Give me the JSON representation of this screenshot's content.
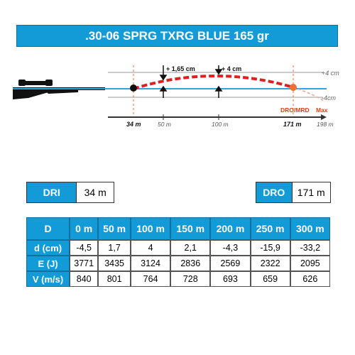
{
  "title": ".30-06 SPRG TXRG BLUE 165 gr",
  "trajectory": {
    "annotations": {
      "rise_165": "+ 1,65 cm",
      "rise_4": "+ 4 cm",
      "band_top": "+4 cm",
      "band_bottom": "-4cm",
      "dro_mrd": "DRO/MRD",
      "max": "Max"
    },
    "distance_labels": {
      "d34": "34 m",
      "d50": "50 m",
      "d100": "100 m",
      "d171": "171 m",
      "d198": "198 m"
    },
    "colors": {
      "trajectory": "#e02020",
      "zero_line": "#2aa6e0",
      "band": "#999999",
      "dro_point": "#f07030"
    }
  },
  "dri": {
    "label": "DRI",
    "value": "34 m"
  },
  "dro": {
    "label": "DRO",
    "value": "171 m"
  },
  "table": {
    "header": [
      "D",
      "0 m",
      "50 m",
      "100 m",
      "150 m",
      "200 m",
      "250 m",
      "300 m"
    ],
    "rows": [
      {
        "label": "d (cm)",
        "values": [
          "-4,5",
          "1,7",
          "4",
          "2,1",
          "-4,3",
          "-15,9",
          "-33,2"
        ]
      },
      {
        "label": "E (J)",
        "values": [
          "3771",
          "3435",
          "3124",
          "2836",
          "2569",
          "2322",
          "2095"
        ]
      },
      {
        "label": "V (m/s)",
        "values": [
          "840",
          "801",
          "764",
          "728",
          "693",
          "659",
          "626"
        ]
      }
    ]
  }
}
